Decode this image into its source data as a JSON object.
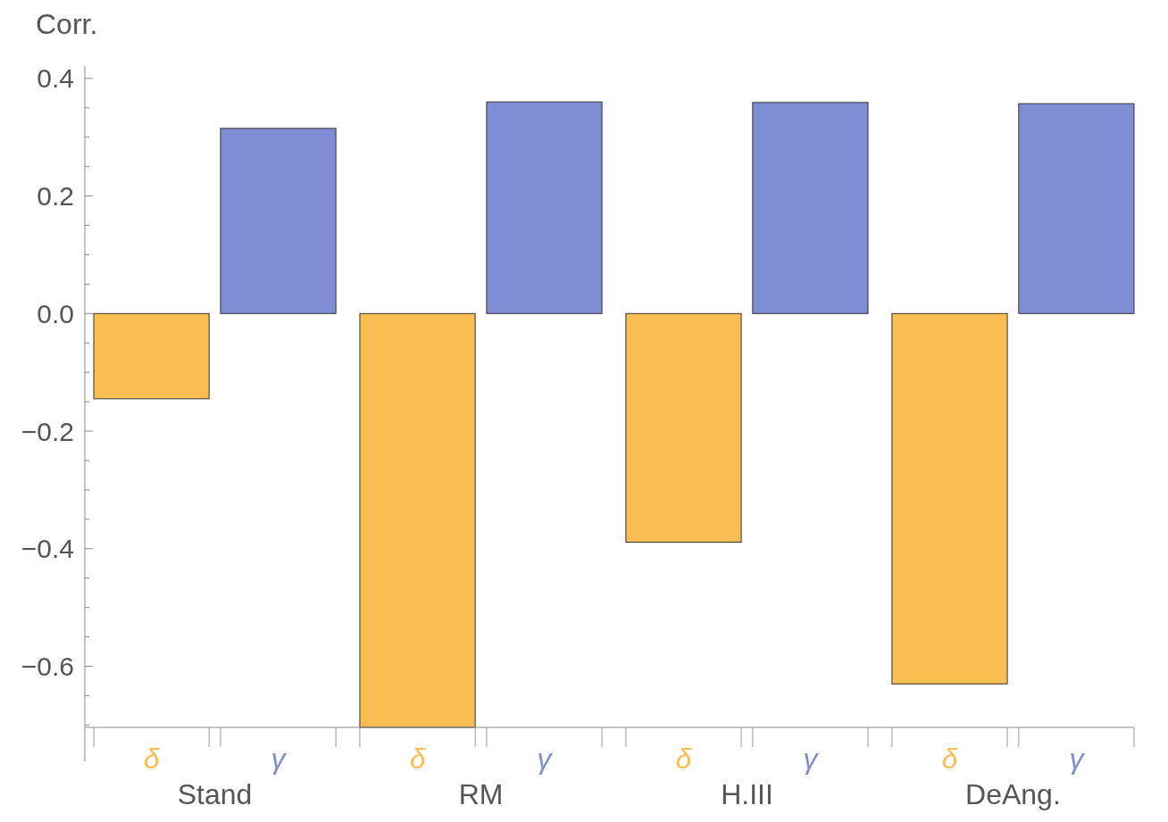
{
  "chart_data": {
    "type": "bar",
    "ylabel": "Corr.",
    "categories": [
      "Stand",
      "RM",
      "H.III",
      "DeAng."
    ],
    "series": [
      {
        "name": "δ",
        "color": "#f9bd51",
        "values": [
          -0.145,
          -0.704,
          -0.389,
          -0.63
        ]
      },
      {
        "name": "γ",
        "color": "#7f8ed4",
        "values": [
          0.315,
          0.36,
          0.359,
          0.357
        ]
      }
    ],
    "ylim": [
      -0.704,
      0.421
    ],
    "yticks": [
      {
        "value": -0.7,
        "label": null
      },
      {
        "value": -0.65,
        "label": null
      },
      {
        "value": -0.6,
        "label": "−0.6"
      },
      {
        "value": -0.55,
        "label": null
      },
      {
        "value": -0.5,
        "label": null
      },
      {
        "value": -0.45,
        "label": null
      },
      {
        "value": -0.4,
        "label": "−0.4"
      },
      {
        "value": -0.35,
        "label": null
      },
      {
        "value": -0.3,
        "label": null
      },
      {
        "value": -0.25,
        "label": null
      },
      {
        "value": -0.2,
        "label": "−0.2"
      },
      {
        "value": -0.15,
        "label": null
      },
      {
        "value": -0.1,
        "label": null
      },
      {
        "value": -0.05,
        "label": null
      },
      {
        "value": 0,
        "label": "0.0"
      },
      {
        "value": 0.05,
        "label": null
      },
      {
        "value": 0.1,
        "label": null
      },
      {
        "value": 0.15,
        "label": null
      },
      {
        "value": 0.2,
        "label": "0.2"
      },
      {
        "value": 0.25,
        "label": null
      },
      {
        "value": 0.3,
        "label": null
      },
      {
        "value": 0.35,
        "label": null
      },
      {
        "value": 0.4,
        "label": "0.4"
      }
    ],
    "grid": false,
    "legend": false
  }
}
